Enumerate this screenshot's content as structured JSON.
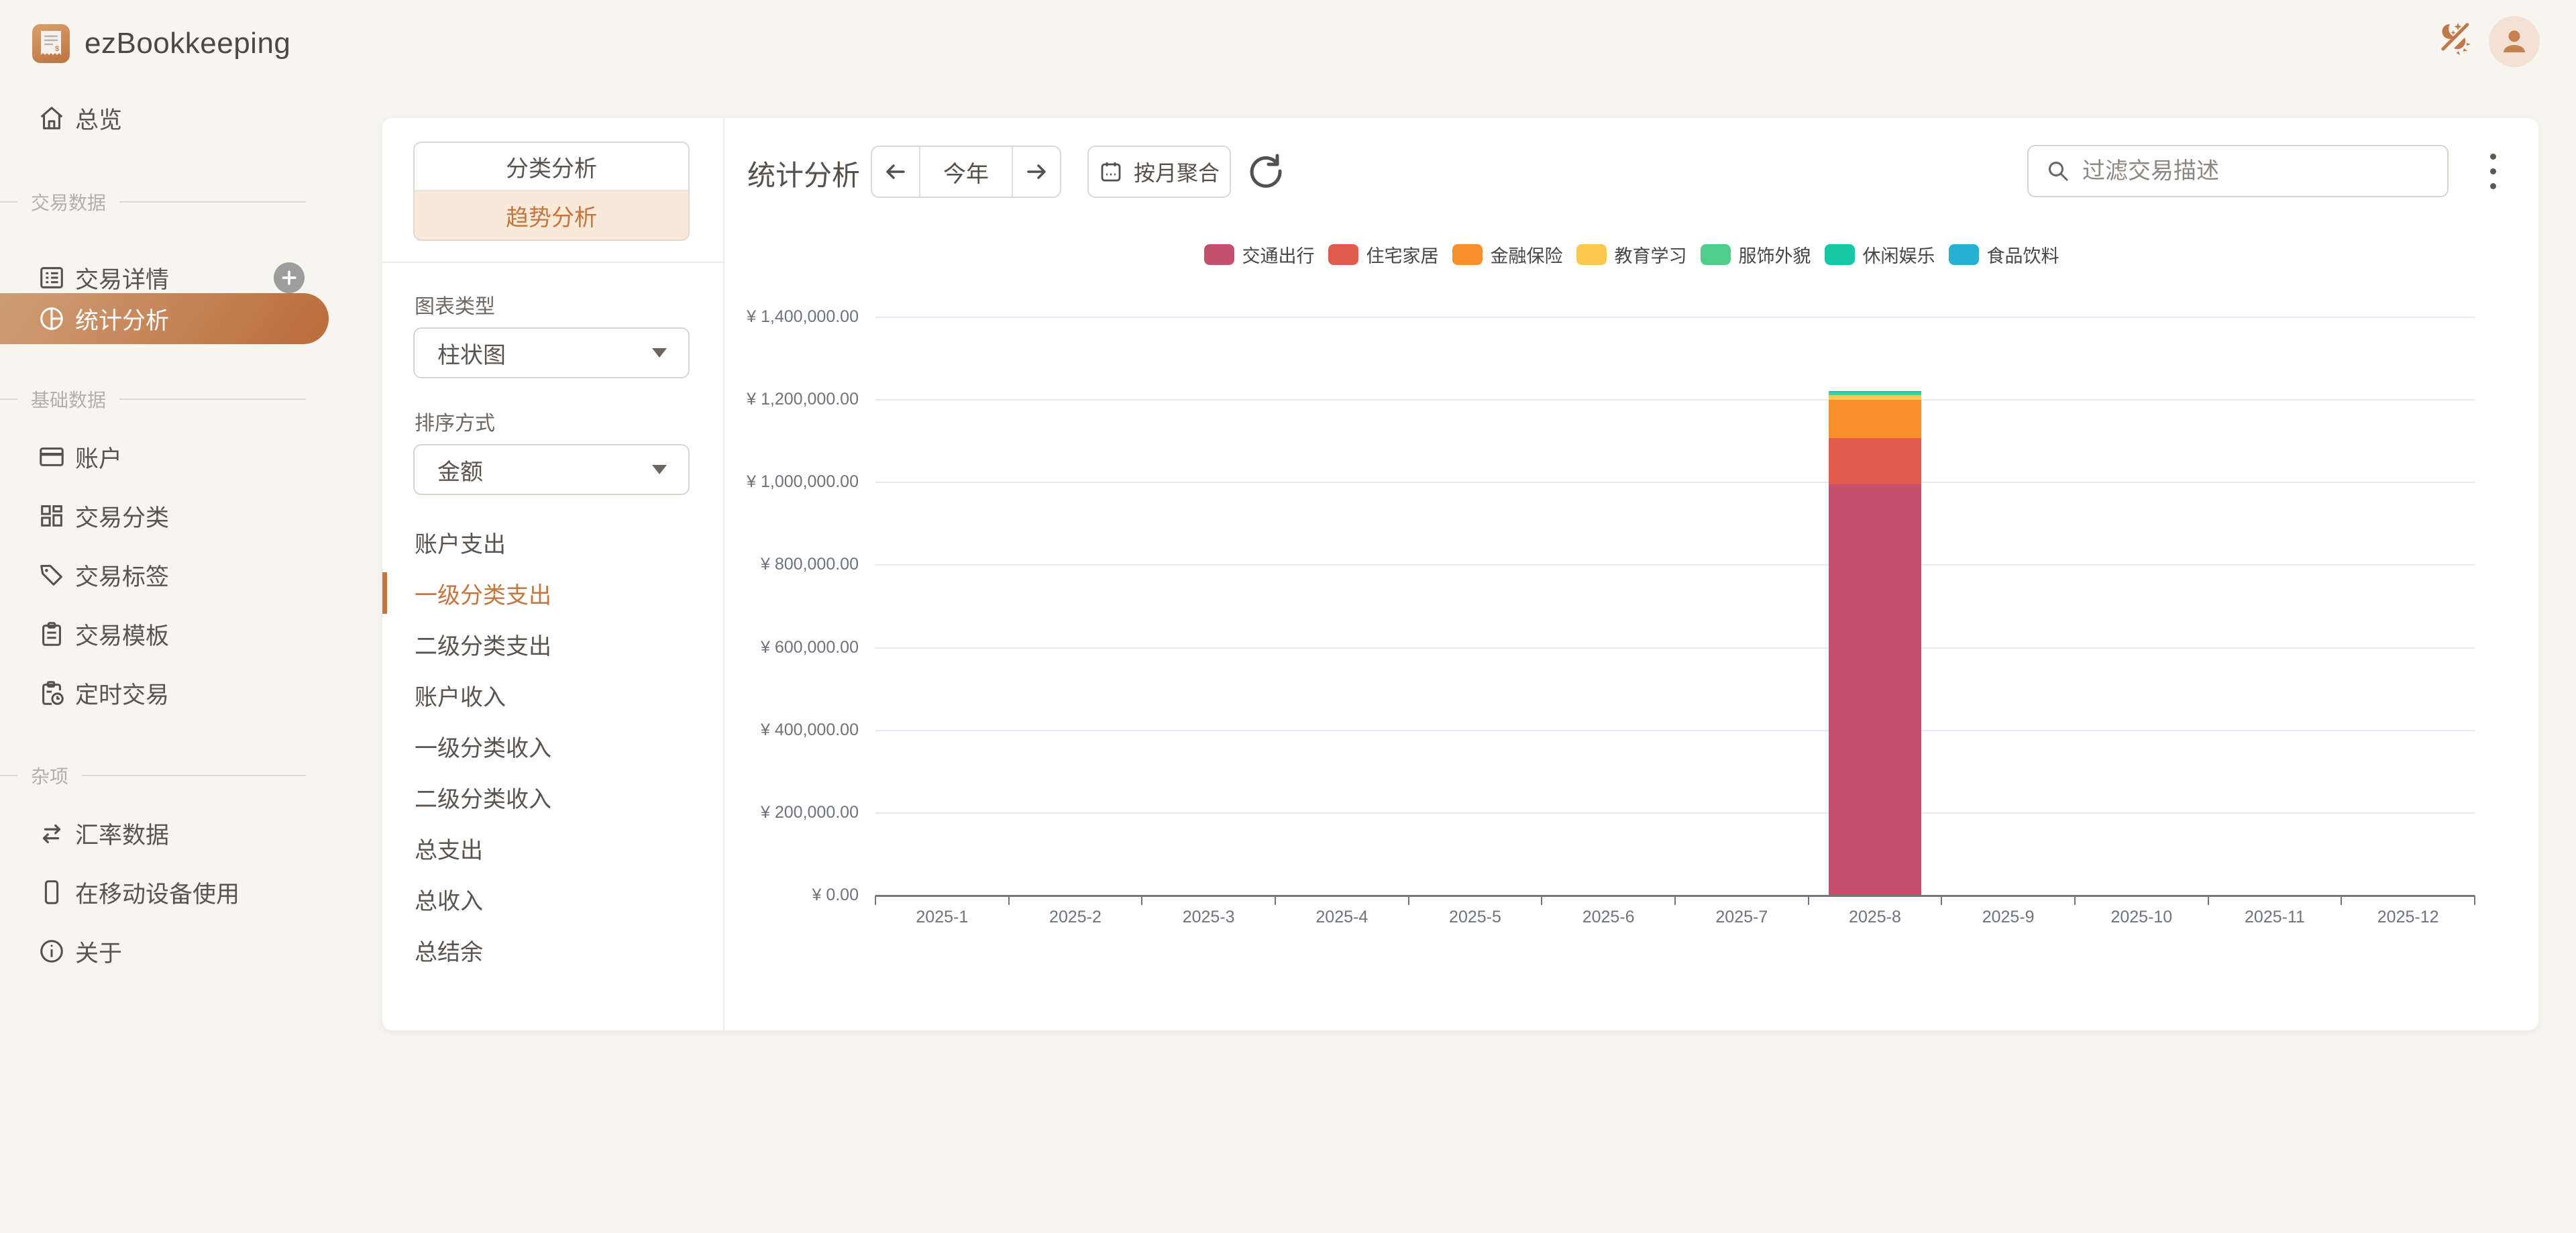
{
  "app": {
    "name": "ezBookkeeping"
  },
  "sidebar": {
    "overview": {
      "label": "总览"
    },
    "sections": [
      {
        "title": "交易数据",
        "items": [
          {
            "label": "交易详情",
            "has_add": true
          },
          {
            "label": "统计分析",
            "active": true
          }
        ]
      },
      {
        "title": "基础数据",
        "items": [
          {
            "label": "账户"
          },
          {
            "label": "交易分类"
          },
          {
            "label": "交易标签"
          },
          {
            "label": "交易模板"
          },
          {
            "label": "定时交易"
          }
        ]
      },
      {
        "title": "杂项",
        "items": [
          {
            "label": "汇率数据"
          },
          {
            "label": "在移动设备使用"
          },
          {
            "label": "关于"
          }
        ]
      }
    ]
  },
  "panel": {
    "mode_tabs": [
      {
        "label": "分类分析",
        "active": false
      },
      {
        "label": "趋势分析",
        "active": true
      }
    ],
    "chart_type": {
      "label": "图表类型",
      "value": "柱状图"
    },
    "sort": {
      "label": "排序方式",
      "value": "金额"
    },
    "metrics": [
      {
        "label": "账户支出"
      },
      {
        "label": "一级分类支出",
        "active": true
      },
      {
        "label": "二级分类支出"
      },
      {
        "label": "账户收入"
      },
      {
        "label": "一级分类收入"
      },
      {
        "label": "二级分类收入"
      },
      {
        "label": "总支出"
      },
      {
        "label": "总收入"
      },
      {
        "label": "总结余"
      }
    ]
  },
  "toolbar": {
    "title": "统计分析",
    "date_range": {
      "label": "今年"
    },
    "aggregate_label": "按月聚合",
    "search_placeholder": "过滤交易描述"
  },
  "theme": {
    "accent": "#c5763f",
    "active_gradient_start": "#cf9e76",
    "active_gradient_end": "#bb6c3a"
  },
  "chart_data": {
    "type": "bar",
    "stacked": true,
    "x": [
      "2025-1",
      "2025-2",
      "2025-3",
      "2025-4",
      "2025-5",
      "2025-6",
      "2025-7",
      "2025-8",
      "2025-9",
      "2025-10",
      "2025-11",
      "2025-12"
    ],
    "series": [
      {
        "name": "交通出行",
        "color": "#c4506e",
        "values": [
          0,
          0,
          0,
          0,
          0,
          0,
          0,
          995000,
          0,
          0,
          0,
          0
        ]
      },
      {
        "name": "住宅家居",
        "color": "#e25a4e",
        "values": [
          0,
          0,
          0,
          0,
          0,
          0,
          0,
          112000,
          0,
          0,
          0,
          0
        ]
      },
      {
        "name": "金融保险",
        "color": "#f98e2b",
        "values": [
          0,
          0,
          0,
          0,
          0,
          0,
          0,
          94000,
          0,
          0,
          0,
          0
        ]
      },
      {
        "name": "教育学习",
        "color": "#fcc94e",
        "values": [
          0,
          0,
          0,
          0,
          0,
          0,
          0,
          10000,
          0,
          0,
          0,
          0
        ]
      },
      {
        "name": "服饰外貌",
        "color": "#4fcd8a",
        "values": [
          0,
          0,
          0,
          0,
          0,
          0,
          0,
          6500,
          0,
          0,
          0,
          0
        ]
      },
      {
        "name": "休闲娱乐",
        "color": "#16c8a3",
        "values": [
          0,
          0,
          0,
          0,
          0,
          0,
          0,
          2000,
          0,
          0,
          0,
          0
        ]
      },
      {
        "name": "食品饮料",
        "color": "#27b0d2",
        "values": [
          0,
          0,
          0,
          0,
          0,
          0,
          0,
          2000,
          0,
          0,
          0,
          0
        ]
      }
    ],
    "ylim": [
      0,
      1400000
    ],
    "y_tick_step": 200000,
    "y_tick_labels": [
      "¥ 0.00",
      "¥ 200,000.00",
      "¥ 400,000.00",
      "¥ 600,000.00",
      "¥ 800,000.00",
      "¥ 1,000,000.00",
      "¥ 1,200,000.00",
      "¥ 1,400,000.00"
    ],
    "legend_position": "top-center",
    "grid": true,
    "currency_prefix": "¥"
  }
}
